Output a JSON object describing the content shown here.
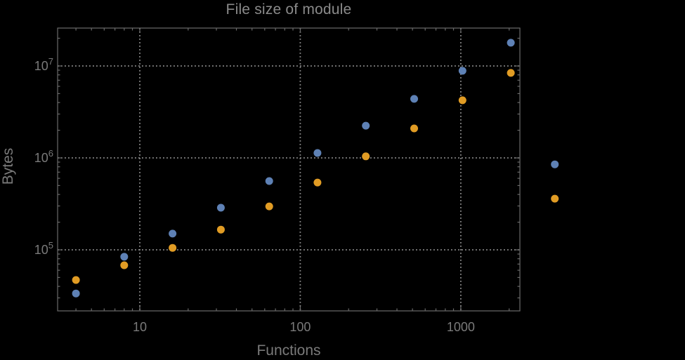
{
  "chart_data": {
    "type": "scatter",
    "scale": "log-log",
    "title": "File size of module",
    "xlabel": "Functions",
    "ylabel": "Bytes",
    "grid": "dotted gray lines at each labeled decade",
    "legend": "none",
    "x_axis": {
      "tick_labels": [
        "10",
        "100",
        "1000"
      ],
      "tick_values": [
        10,
        100,
        1000
      ],
      "lim_log10": [
        0.488,
        3.368
      ]
    },
    "y_axis": {
      "tick_labels": [
        "10^5",
        "10^6",
        "10^7"
      ],
      "tick_values": [
        100000,
        1000000,
        10000000
      ],
      "lim_log10": [
        4.336,
        7.412
      ]
    },
    "marker": "filled circle",
    "series": [
      {
        "name": "blue",
        "color": "#5e81b5",
        "x": [
          4,
          8,
          16,
          32,
          64,
          128,
          256,
          512,
          1024,
          2048,
          3850
        ],
        "y": [
          33500,
          84000,
          150000,
          287000,
          560000,
          1130000,
          2240000,
          4380000,
          8850000,
          17900000,
          850000
        ]
      },
      {
        "name": "orange",
        "color": "#e19c24",
        "x": [
          4,
          8,
          16,
          32,
          64,
          128,
          256,
          512,
          1024,
          2048,
          3850
        ],
        "y": [
          47000,
          68000,
          105000,
          166000,
          297000,
          540000,
          1040000,
          2090000,
          4230000,
          8400000,
          360000
        ]
      }
    ]
  },
  "colors": {
    "background": "#000000",
    "frame": "#6a6a6a",
    "grid": "#8c8c8c",
    "text": "#7a7a7a",
    "title_text": "#8a8a8a"
  }
}
